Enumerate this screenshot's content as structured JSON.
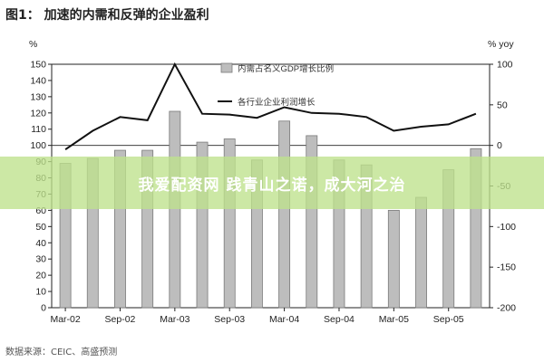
{
  "title": "图1： 加速的内需和反弹的企业盈利",
  "source": "数据来源：CEIC、高盛预测",
  "watermark": "我爱配资网 践青山之诺，成大河之治",
  "chart_data": {
    "type": "bar+line",
    "left_axis_label": "%",
    "right_axis_label": "% yoy",
    "left_ylim": [
      0,
      150
    ],
    "left_ticks": [
      0,
      10,
      20,
      30,
      40,
      50,
      60,
      70,
      80,
      90,
      100,
      110,
      120,
      130,
      140,
      150
    ],
    "right_ylim": [
      -200,
      100
    ],
    "right_ticks": [
      -200,
      -150,
      -100,
      -50,
      0,
      50,
      100
    ],
    "x_tick_labels": [
      "Mar-02",
      "Sep-02",
      "Mar-03",
      "Sep-03",
      "Mar-04",
      "Sep-04",
      "Mar-05",
      "Sep-05"
    ],
    "grid": false,
    "legend_position": "top-center",
    "colors": {
      "bar_fill": "#bdbdbd",
      "bar_stroke": "#7a7a7a",
      "line": "#111111"
    },
    "series": [
      {
        "name": "内需占名义GDP增长比例",
        "type": "bar",
        "axis": "left",
        "values": [
          89,
          92,
          97,
          97,
          121,
          102,
          104,
          91,
          115,
          106,
          91,
          88,
          60,
          68,
          85,
          98
        ]
      },
      {
        "name": "各行业企业利润增长",
        "type": "line",
        "axis": "right",
        "values": [
          -5,
          18,
          35,
          31,
          100,
          39,
          38,
          34,
          47,
          40,
          39,
          35,
          18,
          23,
          26,
          39
        ]
      }
    ]
  }
}
